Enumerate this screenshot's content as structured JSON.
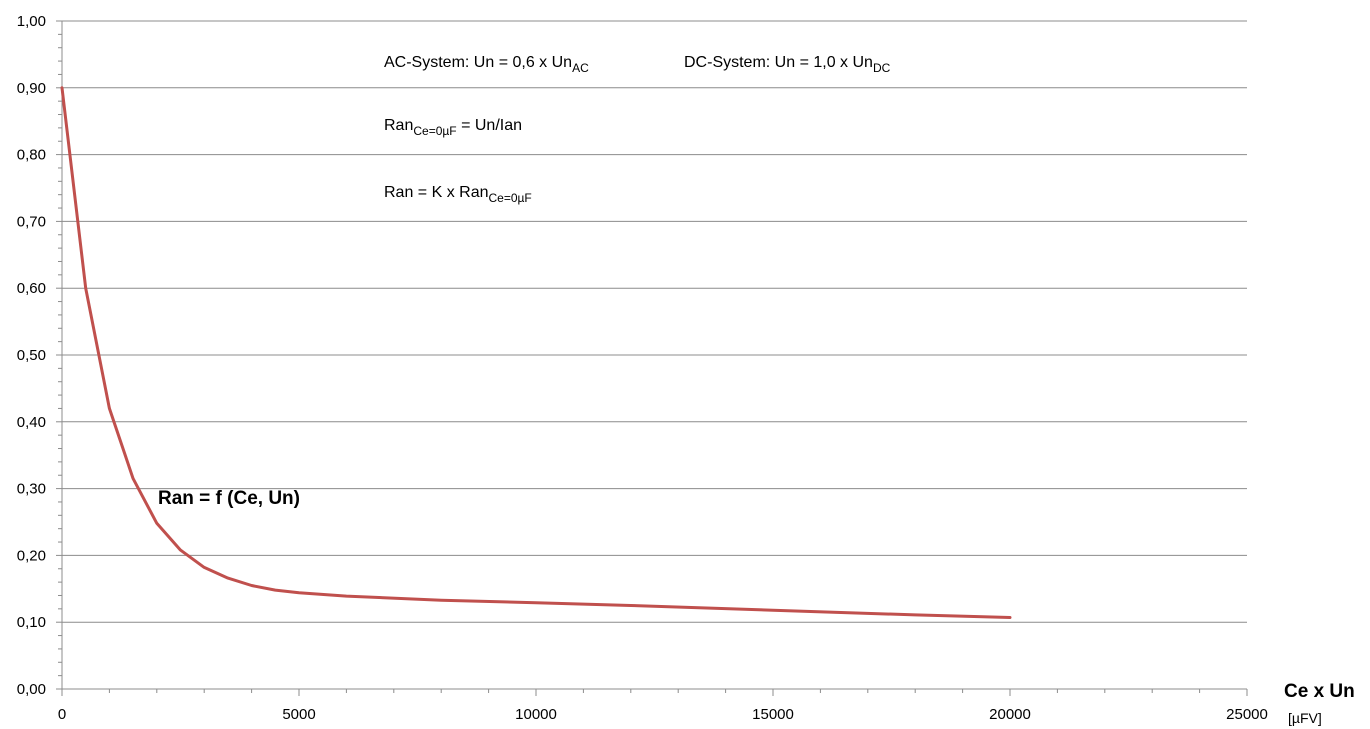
{
  "chart_data": {
    "type": "line",
    "series": [
      {
        "color": "#c0504d",
        "x": [
          0,
          500,
          1000,
          1500,
          2000,
          2500,
          3000,
          3500,
          4000,
          4500,
          5000,
          6000,
          8000,
          10000,
          12000,
          15000,
          18000,
          20000
        ],
        "y": [
          0.9,
          0.6,
          0.42,
          0.315,
          0.248,
          0.208,
          0.182,
          0.166,
          0.155,
          0.148,
          0.144,
          0.139,
          0.133,
          0.129,
          0.125,
          0.118,
          0.111,
          0.107
        ]
      }
    ],
    "xlim": [
      0,
      25000
    ],
    "ylim": [
      0,
      1.0
    ],
    "x_ticks": [
      0,
      5000,
      10000,
      15000,
      20000,
      25000
    ],
    "x_tick_labels": [
      "0",
      "5000",
      "10000",
      "15000",
      "20000",
      "25000"
    ],
    "y_ticks": [
      0,
      0.1,
      0.2,
      0.3,
      0.4,
      0.5,
      0.6,
      0.7,
      0.8,
      0.9,
      1.0
    ],
    "y_tick_labels": [
      "0,00",
      "0,10",
      "0,20",
      "0,30",
      "0,40",
      "0,50",
      "0,60",
      "0,70",
      "0,80",
      "0,90",
      "1,00"
    ],
    "grid": "horizontal",
    "xlabel": {
      "main": "Ce x Un",
      "unit": "[µFV]"
    },
    "curve_label": "Ran = f (Ce, Un)",
    "annotations": {
      "ac": {
        "text": "AC-System: Un = 0,6 x Un",
        "sub": "AC"
      },
      "dc": {
        "text": "DC-System: Un = 1,0 x Un",
        "sub": "DC"
      },
      "formula1": {
        "pre": "Ran",
        "sub": "Ce=0µF",
        "post": " = Un/Ian"
      },
      "formula2": {
        "pre": "Ran = K x Ran",
        "sub": "Ce=0µF"
      }
    }
  }
}
